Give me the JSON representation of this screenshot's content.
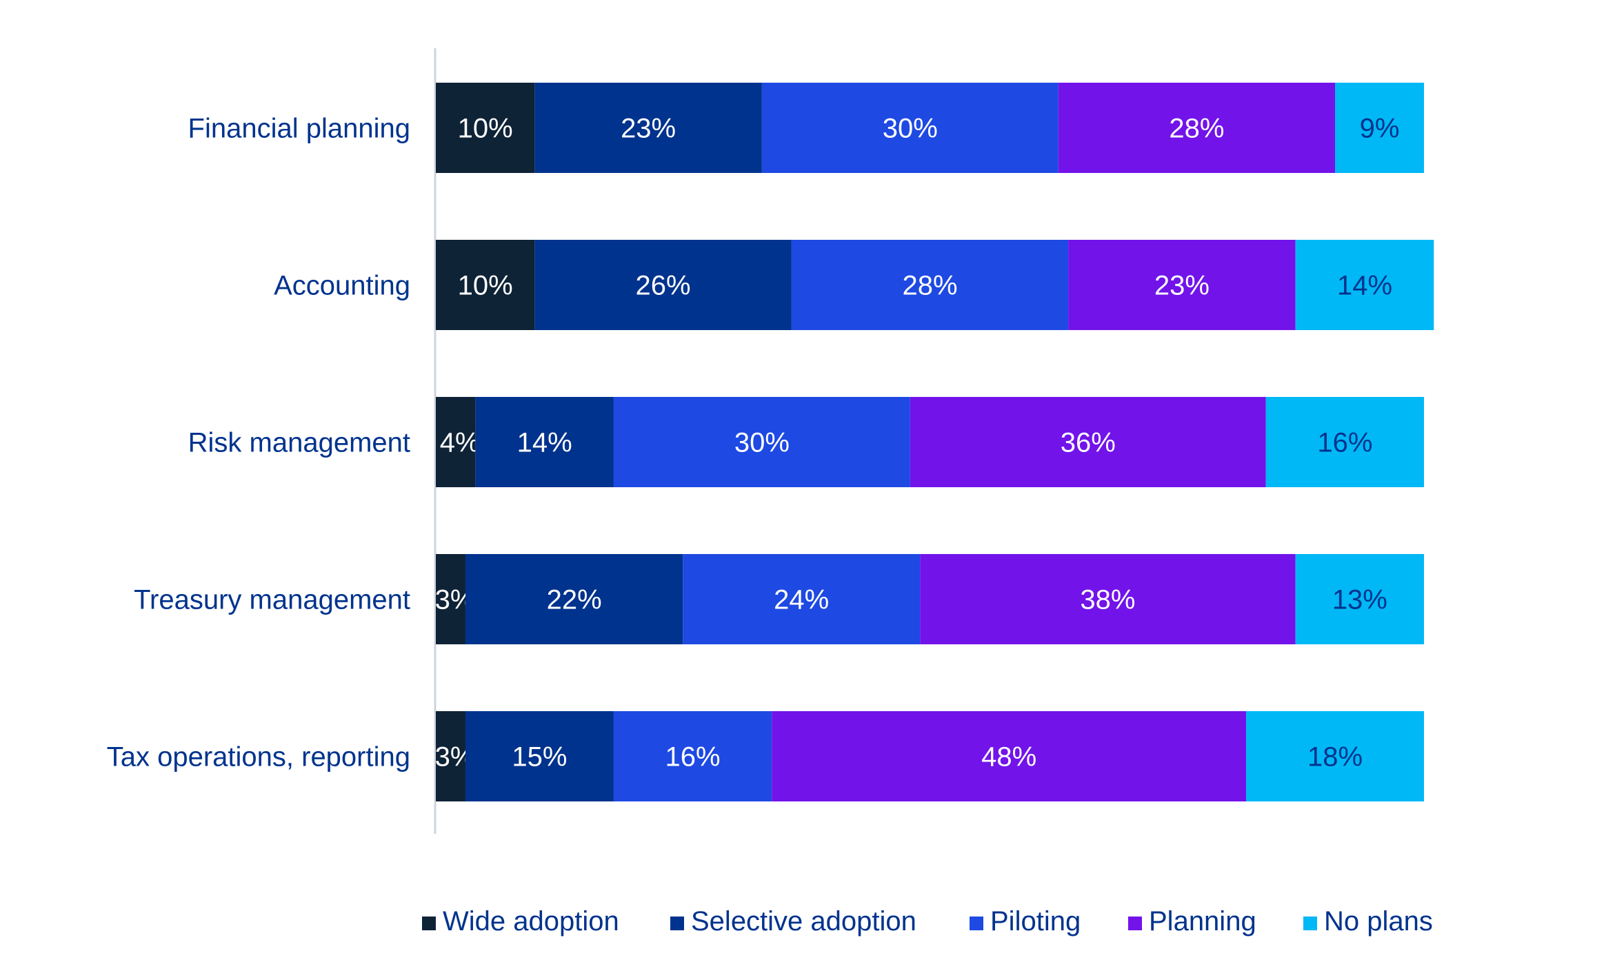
{
  "chart_data": {
    "type": "bar",
    "orientation": "horizontal",
    "stacked": true,
    "categories": [
      "Financial planning",
      "Accounting",
      "Risk management",
      "Treasury management",
      "Tax operations, reporting"
    ],
    "series": [
      {
        "name": "Wide adoption",
        "color": "#0F2337",
        "label_color": "#FFFFFF",
        "values": [
          10,
          10,
          4,
          3,
          3
        ]
      },
      {
        "name": "Selective adoption",
        "color": "#00338D",
        "label_color": "#FFFFFF",
        "values": [
          23,
          26,
          14,
          22,
          15
        ]
      },
      {
        "name": "Piloting",
        "color": "#1E49E2",
        "label_color": "#FFFFFF",
        "values": [
          30,
          28,
          30,
          24,
          16
        ]
      },
      {
        "name": "Planning",
        "color": "#7213EA",
        "label_color": "#FFFFFF",
        "values": [
          28,
          23,
          36,
          38,
          48
        ]
      },
      {
        "name": "No plans",
        "color": "#00B8F5",
        "label_color": "#00338D",
        "values": [
          9,
          14,
          16,
          13,
          18
        ]
      }
    ],
    "value_suffix": "%",
    "category_label_color": "#00338D",
    "legend_text_color": "#00338D",
    "legend_position": "bottom",
    "grid": false,
    "xlim": [
      0,
      100
    ]
  }
}
